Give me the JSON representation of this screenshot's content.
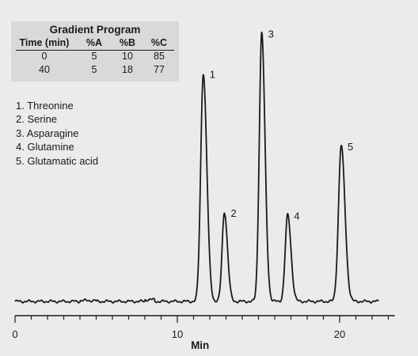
{
  "gradient_program": {
    "title": "Gradient Program",
    "headers": [
      "Time (min)",
      "%A",
      "%B",
      "%C"
    ],
    "rows": [
      [
        "0",
        "5",
        "10",
        "85"
      ],
      [
        "40",
        "5",
        "18",
        "77"
      ]
    ]
  },
  "legend": [
    "1. Threonine",
    "2. Serine",
    "3. Asparagine",
    "4. Glutamine",
    "5. Glutamatic acid"
  ],
  "chart_data": {
    "type": "line",
    "title": "",
    "xlabel": "Min",
    "ylabel": "",
    "xlim": [
      0,
      23.4
    ],
    "x_ticks": [
      "0",
      "10",
      "20"
    ],
    "grid": false,
    "peaks": [
      {
        "label": "1",
        "rt": 11.6,
        "height": 0.79
      },
      {
        "label": "2",
        "rt": 12.9,
        "height": 0.31
      },
      {
        "label": "3",
        "rt": 15.2,
        "height": 0.93
      },
      {
        "label": "4",
        "rt": 16.8,
        "height": 0.3
      },
      {
        "label": "5",
        "rt": 20.1,
        "height": 0.54
      }
    ],
    "colors": {
      "trace": "#1a1a1a",
      "background": "#ebebeb",
      "table_background": "#d9d9d9"
    }
  }
}
